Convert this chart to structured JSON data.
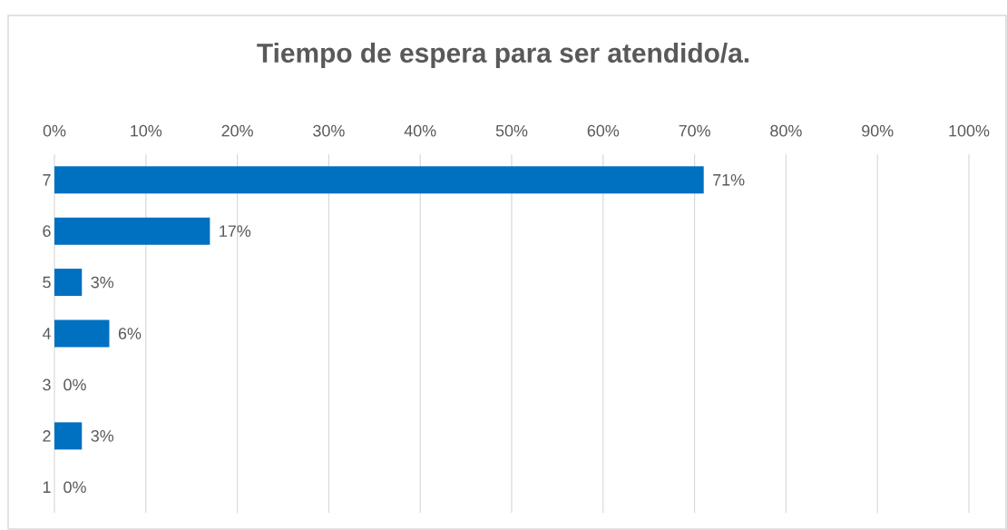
{
  "chart_data": {
    "type": "bar",
    "orientation": "horizontal",
    "title": "Tiempo de espera para ser atendido/a.",
    "categories": [
      "7",
      "6",
      "5",
      "4",
      "3",
      "2",
      "1"
    ],
    "values": [
      71,
      17,
      3,
      6,
      0,
      3,
      0
    ],
    "value_labels": [
      "71%",
      "17%",
      "3%",
      "6%",
      "0%",
      "3%",
      "0%"
    ],
    "color": "#0070c0",
    "xlim": [
      0,
      100
    ],
    "xticks": [
      {
        "value": 0,
        "label": "0%"
      },
      {
        "value": 10,
        "label": "10%"
      },
      {
        "value": 20,
        "label": "20%"
      },
      {
        "value": 30,
        "label": "30%"
      },
      {
        "value": 40,
        "label": "40%"
      },
      {
        "value": 50,
        "label": "50%"
      },
      {
        "value": 60,
        "label": "60%"
      },
      {
        "value": 70,
        "label": "70%"
      },
      {
        "value": 80,
        "label": "80%"
      },
      {
        "value": 90,
        "label": "90%"
      },
      {
        "value": 100,
        "label": "100%"
      }
    ],
    "grid": "x"
  }
}
